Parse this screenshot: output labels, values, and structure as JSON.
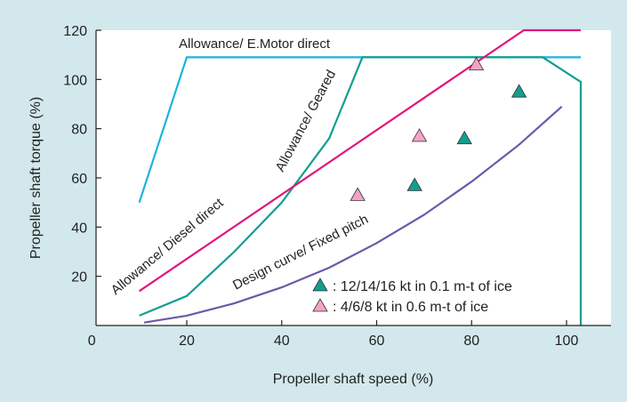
{
  "chart_data": {
    "type": "line",
    "title": "",
    "xlabel": "Propeller shaft speed (%)",
    "ylabel": "Propeller shaft torque (%)",
    "xlim": [
      0,
      112
    ],
    "ylim": [
      0,
      120
    ],
    "x_ticks": [
      0,
      20,
      40,
      60,
      80,
      100
    ],
    "y_ticks": [
      20,
      40,
      60,
      80,
      100,
      120
    ],
    "grid": false,
    "series": [
      {
        "name": "Allowance/ E.Motor direct",
        "color": "#1ab4e0",
        "x": [
          10,
          20,
          103
        ],
        "y": [
          50,
          109,
          109
        ]
      },
      {
        "name": "Allowance/ Geared",
        "color": "#139e8f",
        "x": [
          10,
          20,
          30,
          40,
          50,
          57,
          95,
          103,
          103
        ],
        "y": [
          4,
          12,
          30,
          50,
          76,
          109,
          109,
          99,
          0
        ]
      },
      {
        "name": "Allowance/ Diesel direct",
        "color": "#e1157a",
        "x": [
          10,
          91,
          103
        ],
        "y": [
          14,
          120,
          120
        ]
      },
      {
        "name": "Design curve/ Fixed pitch",
        "color": "#6b59a8",
        "x": [
          11,
          20,
          30,
          40,
          50,
          60,
          70,
          80,
          90,
          99
        ],
        "y": [
          1.2,
          4,
          9,
          15.5,
          23.5,
          33.5,
          45,
          58.5,
          73.5,
          89
        ]
      }
    ],
    "scatter": [
      {
        "name": "12/14/16 kt in 0.1 m-t of ice",
        "color": "#139e8f",
        "x": [
          68,
          78.5,
          90
        ],
        "y": [
          57,
          76,
          95
        ]
      },
      {
        "name": "4/6/8 kt in 0.6 m-t of ice",
        "color": "#f3a3c7",
        "x": [
          56,
          69,
          81
        ],
        "y": [
          53,
          77,
          106
        ]
      }
    ],
    "annotations": {
      "emotor": "Allowance/ E.Motor direct",
      "geared": "Allowance/ Geared",
      "diesel": "Allowance/ Diesel direct",
      "design": "Design curve/ Fixed pitch"
    },
    "legend": {
      "placement": "bottom-right",
      "entries": [
        ": 12/14/16 kt in 0.1 m-t of ice",
        ": 4/6/8 kt in 0.6 m-t of ice"
      ]
    }
  }
}
